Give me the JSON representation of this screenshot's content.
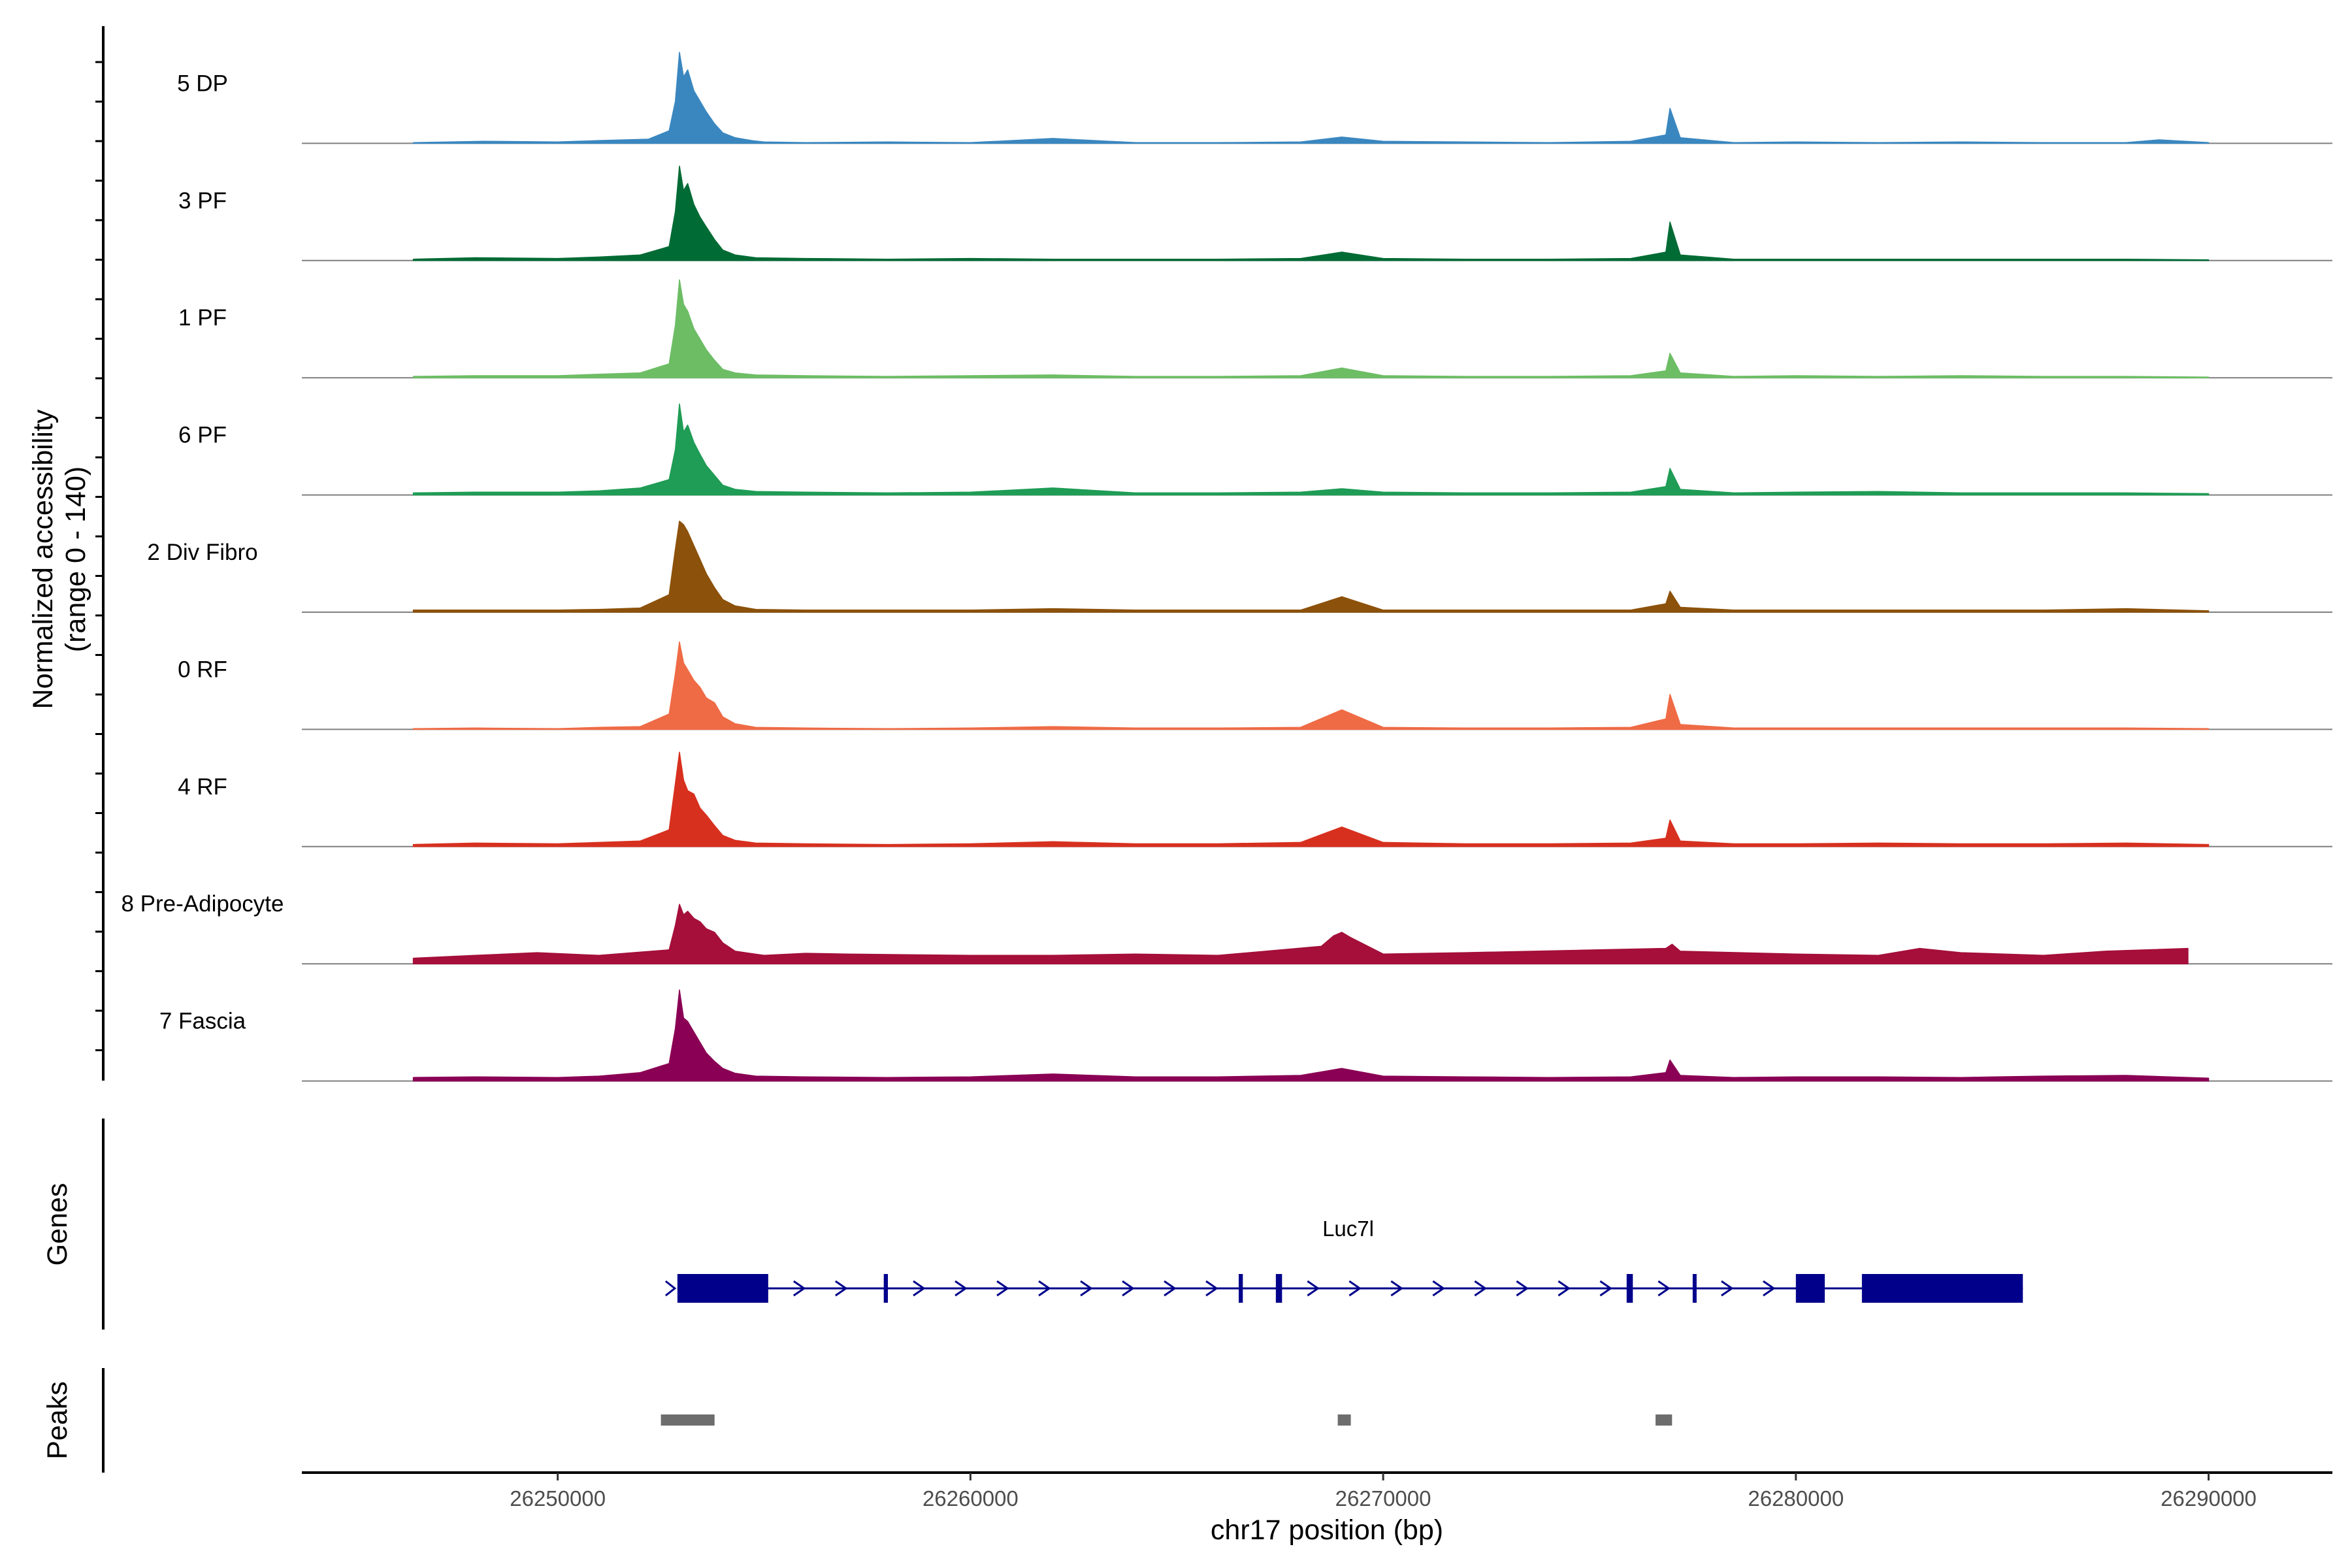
{
  "chart_data": {
    "type": "area",
    "title": "",
    "xlabel": "chr17 position (bp)",
    "ylabel": "Normalized accessibility",
    "ylabel_range": "(range 0 - 140)",
    "ylim": [
      0,
      140
    ],
    "xlim": [
      26243800,
      26293000
    ],
    "x_ticks": [
      26250000,
      26260000,
      26270000,
      26280000,
      26290000
    ],
    "x_tick_labels": [
      "26250000",
      "26260000",
      "26270000",
      "26280000",
      "26290000"
    ],
    "grid": false,
    "legend": "none",
    "series": [
      {
        "name": "5 DP",
        "color": "#3a87c0",
        "x": [
          26246500,
          26248200,
          26250000,
          26251000,
          26252200,
          26252700,
          26252850,
          26252950,
          26253050,
          26253150,
          26253300,
          26253450,
          26253600,
          26253800,
          26254000,
          26254300,
          26254700,
          26255000,
          26256000,
          26258000,
          26260000,
          26262000,
          26264000,
          26266000,
          26268000,
          26269000,
          26270000,
          26272000,
          26274000,
          26276000,
          26276850,
          26276950,
          26277200,
          26278500,
          26280000,
          26282000,
          26284000,
          26286000,
          26288000,
          26288800,
          26290000
        ],
        "values": [
          1,
          3,
          2,
          4,
          6,
          18,
          60,
          130,
          95,
          105,
          75,
          60,
          45,
          28,
          15,
          8,
          4,
          2,
          1,
          2,
          1,
          7,
          1,
          1,
          2,
          9,
          3,
          2,
          1,
          3,
          12,
          50,
          8,
          1,
          2,
          1,
          2,
          1,
          1,
          5,
          1
        ]
      },
      {
        "name": "3 PF",
        "color": "#006b35",
        "x": [
          26246500,
          26248000,
          26250000,
          26251000,
          26252000,
          26252700,
          26252850,
          26252950,
          26253050,
          26253150,
          26253300,
          26253450,
          26253600,
          26253800,
          26254000,
          26254300,
          26254800,
          26256000,
          26258000,
          26260000,
          26262000,
          26264000,
          26266000,
          26268000,
          26269000,
          26270000,
          26272000,
          26274000,
          26276000,
          26276850,
          26276950,
          26277200,
          26278500,
          26280000,
          26282000,
          26284000,
          26286000,
          26288000,
          26290000
        ],
        "values": [
          2,
          4,
          3,
          5,
          8,
          20,
          70,
          135,
          100,
          110,
          80,
          62,
          48,
          30,
          15,
          8,
          4,
          3,
          2,
          3,
          2,
          2,
          2,
          3,
          12,
          3,
          2,
          2,
          3,
          12,
          55,
          8,
          2,
          2,
          2,
          2,
          2,
          2,
          1
        ]
      },
      {
        "name": "1 PF",
        "color": "#6dbd65",
        "x": [
          26246500,
          26248000,
          26250000,
          26251000,
          26252000,
          26252700,
          26252850,
          26252950,
          26253050,
          26253150,
          26253300,
          26253450,
          26253600,
          26253800,
          26254000,
          26254300,
          26254800,
          26256000,
          26258000,
          26260000,
          26262000,
          26264000,
          26266000,
          26268000,
          26269000,
          26270000,
          26272000,
          26274000,
          26276000,
          26276850,
          26276950,
          26277200,
          26278500,
          26280000,
          26282000,
          26284000,
          26286000,
          26288000,
          26290000
        ],
        "values": [
          2,
          3,
          3,
          5,
          7,
          20,
          75,
          140,
          105,
          95,
          70,
          55,
          40,
          25,
          12,
          7,
          4,
          3,
          2,
          3,
          4,
          2,
          2,
          3,
          14,
          3,
          2,
          2,
          3,
          10,
          35,
          7,
          2,
          3,
          2,
          3,
          2,
          2,
          1
        ]
      },
      {
        "name": "6 PF",
        "color": "#1f9c55",
        "x": [
          26246500,
          26248000,
          26250000,
          26251000,
          26252000,
          26252700,
          26252850,
          26252950,
          26253050,
          26253150,
          26253300,
          26253450,
          26253600,
          26253800,
          26254000,
          26254300,
          26254800,
          26256000,
          26258000,
          26260000,
          26262000,
          26264000,
          26266000,
          26268000,
          26269000,
          26270000,
          26272000,
          26274000,
          26276000,
          26276850,
          26276950,
          26277200,
          26278500,
          26280000,
          26282000,
          26284000,
          26286000,
          26288000,
          26290000
        ],
        "values": [
          3,
          4,
          4,
          6,
          10,
          22,
          65,
          130,
          90,
          100,
          75,
          58,
          42,
          28,
          14,
          8,
          5,
          4,
          3,
          4,
          10,
          3,
          3,
          4,
          9,
          4,
          3,
          3,
          4,
          12,
          38,
          8,
          3,
          4,
          5,
          3,
          3,
          3,
          2
        ]
      },
      {
        "name": "2 Div Fibro",
        "color": "#8c510a",
        "x": [
          26246500,
          26248000,
          26250000,
          26251000,
          26252000,
          26252700,
          26252850,
          26252950,
          26253050,
          26253150,
          26253300,
          26253450,
          26253600,
          26253800,
          26254000,
          26254300,
          26254800,
          26256000,
          26258000,
          26260000,
          26262000,
          26264000,
          26266000,
          26268000,
          26269000,
          26270000,
          26272000,
          26274000,
          26276000,
          26276850,
          26276950,
          26277200,
          26278500,
          26280000,
          26282000,
          26284000,
          26286000,
          26288000,
          26290000
        ],
        "values": [
          3,
          3,
          3,
          4,
          6,
          25,
          90,
          130,
          125,
          115,
          95,
          75,
          55,
          35,
          18,
          9,
          4,
          3,
          3,
          3,
          5,
          3,
          3,
          3,
          22,
          3,
          3,
          3,
          3,
          12,
          30,
          7,
          3,
          3,
          3,
          3,
          3,
          5,
          2
        ]
      },
      {
        "name": "0 RF",
        "color": "#ef6b45",
        "x": [
          26246500,
          26248000,
          26250000,
          26251000,
          26252000,
          26252700,
          26252850,
          26252950,
          26253050,
          26253150,
          26253300,
          26253450,
          26253600,
          26253800,
          26254000,
          26254300,
          26254800,
          26256000,
          26258000,
          26260000,
          26262000,
          26264000,
          26266000,
          26268000,
          26269000,
          26270000,
          26272000,
          26274000,
          26276000,
          26276850,
          26276950,
          26277200,
          26278500,
          26280000,
          26282000,
          26284000,
          26286000,
          26288000,
          26290000
        ],
        "values": [
          1,
          2,
          1,
          3,
          4,
          22,
          80,
          125,
          95,
          85,
          70,
          60,
          45,
          38,
          18,
          8,
          3,
          2,
          1,
          2,
          4,
          2,
          2,
          3,
          28,
          3,
          2,
          2,
          3,
          15,
          50,
          7,
          2,
          2,
          2,
          2,
          2,
          2,
          1
        ]
      },
      {
        "name": "4 RF",
        "color": "#d7301f",
        "x": [
          26246500,
          26248000,
          26250000,
          26251000,
          26252000,
          26252700,
          26252850,
          26252950,
          26253050,
          26253150,
          26253300,
          26253450,
          26253600,
          26253800,
          26254000,
          26254300,
          26254800,
          26256000,
          26258000,
          26260000,
          26262000,
          26264000,
          26266000,
          26268000,
          26269000,
          26270000,
          26272000,
          26274000,
          26276000,
          26276850,
          26276950,
          26277200,
          26278500,
          26280000,
          26282000,
          26284000,
          26286000,
          26288000,
          26290000
        ],
        "values": [
          3,
          5,
          4,
          6,
          8,
          24,
          90,
          135,
          95,
          80,
          75,
          55,
          45,
          30,
          16,
          9,
          5,
          4,
          3,
          4,
          7,
          4,
          4,
          6,
          28,
          6,
          4,
          4,
          5,
          12,
          38,
          8,
          4,
          4,
          5,
          4,
          4,
          5,
          3
        ]
      },
      {
        "name": "8 Pre-Adipocyte",
        "color": "#a50f3a",
        "x": [
          26246500,
          26248000,
          26249500,
          26251000,
          26252700,
          26252850,
          26252950,
          26253050,
          26253150,
          26253300,
          26253450,
          26253600,
          26253800,
          26254000,
          26254300,
          26255000,
          26256000,
          26257000,
          26260000,
          26262000,
          26264000,
          26266000,
          26268500,
          26268800,
          26269000,
          26269200,
          26270000,
          26272000,
          26276850,
          26277000,
          26277200,
          26280000,
          26282000,
          26283000,
          26284000,
          26286000,
          26287500,
          26288500,
          26289500
        ],
        "values": [
          8,
          12,
          16,
          12,
          20,
          55,
          85,
          70,
          75,
          65,
          60,
          50,
          45,
          30,
          18,
          12,
          15,
          14,
          12,
          12,
          14,
          12,
          25,
          40,
          45,
          38,
          14,
          16,
          22,
          28,
          18,
          14,
          12,
          22,
          16,
          12,
          18,
          20,
          22
        ]
      },
      {
        "name": "7 Fascia",
        "color": "#8a0054",
        "x": [
          26246500,
          26248000,
          26250000,
          26251000,
          26252000,
          26252700,
          26252850,
          26252950,
          26253050,
          26253150,
          26253300,
          26253450,
          26253600,
          26253800,
          26254000,
          26254300,
          26254800,
          26256000,
          26258000,
          26260000,
          26262000,
          26264000,
          26266000,
          26268000,
          26269000,
          26270000,
          26272000,
          26274000,
          26276000,
          26276850,
          26276950,
          26277200,
          26278500,
          26280000,
          26282000,
          26284000,
          26286000,
          26288000,
          26290000
        ],
        "values": [
          5,
          6,
          5,
          7,
          12,
          25,
          75,
          130,
          90,
          85,
          70,
          55,
          40,
          28,
          18,
          11,
          7,
          6,
          5,
          6,
          10,
          6,
          6,
          8,
          18,
          7,
          6,
          5,
          6,
          12,
          30,
          8,
          5,
          6,
          6,
          5,
          7,
          8,
          4
        ]
      }
    ],
    "genes": {
      "title": "Genes",
      "name": "Luc7l",
      "color": "#00008b",
      "strand": "+",
      "start": 26252900,
      "end": 26285500,
      "exons": [
        [
          26252900,
          26255100
        ],
        [
          26257900,
          26258000
        ],
        [
          26266500,
          26266600
        ],
        [
          26267400,
          26267550
        ],
        [
          26275900,
          26276050
        ],
        [
          26277500,
          26277580
        ],
        [
          26280000,
          26280700
        ],
        [
          26281600,
          26285500
        ]
      ]
    },
    "peaks": {
      "title": "Peaks",
      "color": "#6d6d6d",
      "regions": [
        [
          26252500,
          26253800
        ],
        [
          26268900,
          26269200
        ],
        [
          26276600,
          26277000
        ]
      ]
    }
  }
}
